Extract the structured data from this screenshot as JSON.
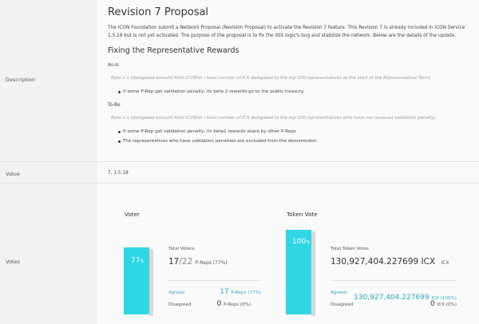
{
  "description": {
    "label": "Description",
    "title": "Revision 7 Proposal",
    "intro": "The ICON Foundation submit a Network Proposal (Revision Proposal) to activate the Revision 7 feature. This Revision 7 is already included in ICON Service 1.5.18 but is not yet activated. The purpose of the proposal is to fix the IISS logic's bug and stabilize the network. Below are the details of the update.",
    "heading": "Fixing the Representative Rewards",
    "as_is_label": "As-Is",
    "as_is_formula": "Beta 2 x (delegated amount from ICONist / total number of ICX delegated to the top 100 representatives at the start of the Representative Term)",
    "as_is_bullets": [
      "If some P-Rep get validation penalty, its beta 2 rewards go to the public treasury."
    ],
    "to_be_label": "To-Be",
    "to_be_formula": "Beta 2 x (delegated amount from ICONist / total number of ICX delegated to the top 100 representatives who have not received validation penalty)",
    "to_be_bullets": [
      "If some P-Rep get validation penalty, its beta2 rewards share by other P-Reps",
      "The representatives who have validation penalties are excluded from the denominator."
    ]
  },
  "value": {
    "label": "Value",
    "text": "7, 1.5.18"
  },
  "votes": {
    "label": "Votes",
    "voter": {
      "heading": "Voter",
      "percent": "77",
      "percent_unit": "%",
      "fill": 0.77,
      "total_label": "Total Voters",
      "total_num": "17",
      "total_den": "/22",
      "total_suffix": "P-Reps (77%)",
      "agreed_label": "Agreed",
      "agreed_num": "17",
      "agreed_suffix": "P-Reps (77%)",
      "disagreed_label": "Disagreed",
      "disagreed_num": "0",
      "disagreed_suffix": "P-Reps (0%)"
    },
    "token": {
      "heading": "Token Vote",
      "percent": "100",
      "percent_unit": "%",
      "fill": 1.0,
      "total_label": "Total Token Votes",
      "total_value": "130,927,404.227699 ICX",
      "total_unit": "ICX",
      "agreed_label": "Agreed",
      "agreed_value": "130,927,404.227699",
      "agreed_suffix": "ICX (100%)",
      "disagreed_label": "Disagreed",
      "disagreed_value": "0",
      "disagreed_suffix": "ICX (0%)"
    }
  }
}
